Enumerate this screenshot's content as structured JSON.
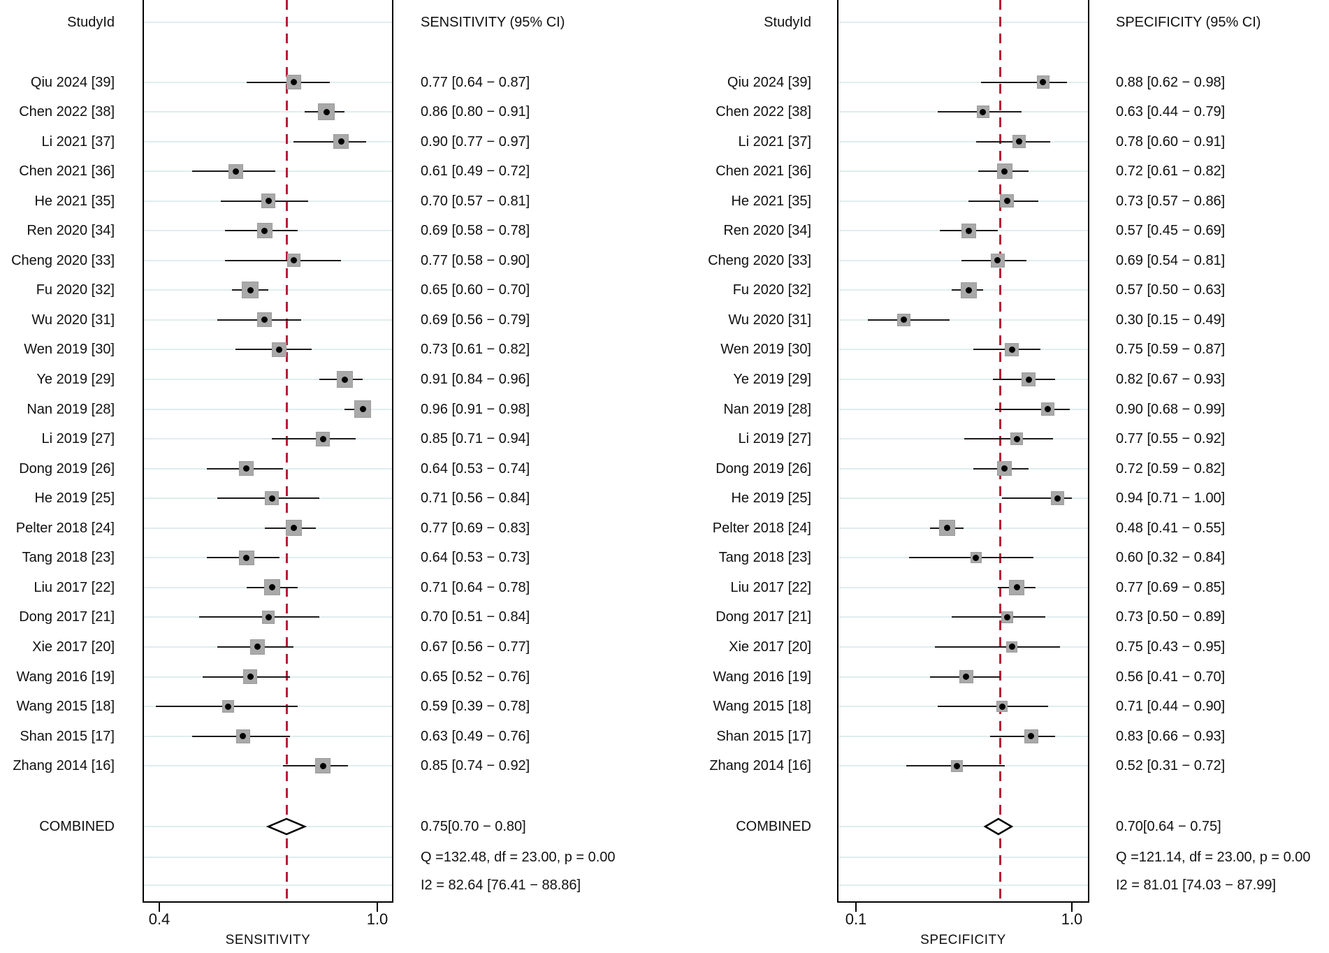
{
  "figure_title": "Paired forest plot of sensitivity and specificity (meta-analysis)",
  "headers": {
    "study_id": "StudyId",
    "sensitivity": "SENSITIVITY (95% CI)",
    "specificity": "SPECIFICITY (95% CI)"
  },
  "colors": {
    "ref_line": "#b81d35",
    "square_fill": "#a9a9a9",
    "square_edge": "#9b9b9b",
    "gridline": "#dfedee",
    "ci_line": "#1a1a1a",
    "text": "#111111",
    "diamond_stroke": "#000000"
  },
  "chart_data": [
    {
      "type": "forest",
      "title": "SENSITIVITY (95% CI)",
      "xlabel": "SENSITIVITY",
      "x_ticks": [
        0.4,
        1.0
      ],
      "x_tick_labels": [
        "0.4",
        "1.0"
      ],
      "xlim": [
        0.35,
        1.05
      ],
      "ref_line": 0.75,
      "grid": true,
      "studies": [
        {
          "label": "Qiu 2024 [39]",
          "est": 0.77,
          "lo": 0.64,
          "hi": 0.87,
          "text": "0.77 [0.64 − 0.87]"
        },
        {
          "label": "Chen 2022 [38]",
          "est": 0.86,
          "lo": 0.8,
          "hi": 0.91,
          "text": "0.86 [0.80 − 0.91]"
        },
        {
          "label": "Li 2021 [37]",
          "est": 0.9,
          "lo": 0.77,
          "hi": 0.97,
          "text": "0.90 [0.77 − 0.97]"
        },
        {
          "label": "Chen 2021 [36]",
          "est": 0.61,
          "lo": 0.49,
          "hi": 0.72,
          "text": "0.61 [0.49 − 0.72]"
        },
        {
          "label": "He 2021 [35]",
          "est": 0.7,
          "lo": 0.57,
          "hi": 0.81,
          "text": "0.70 [0.57 − 0.81]"
        },
        {
          "label": "Ren 2020 [34]",
          "est": 0.69,
          "lo": 0.58,
          "hi": 0.78,
          "text": "0.69 [0.58 − 0.78]"
        },
        {
          "label": "Cheng 2020 [33]",
          "est": 0.77,
          "lo": 0.58,
          "hi": 0.9,
          "text": "0.77 [0.58 − 0.90]"
        },
        {
          "label": "Fu 2020 [32]",
          "est": 0.65,
          "lo": 0.6,
          "hi": 0.7,
          "text": "0.65 [0.60 − 0.70]"
        },
        {
          "label": "Wu 2020 [31]",
          "est": 0.69,
          "lo": 0.56,
          "hi": 0.79,
          "text": "0.69 [0.56 − 0.79]"
        },
        {
          "label": "Wen 2019 [30]",
          "est": 0.73,
          "lo": 0.61,
          "hi": 0.82,
          "text": "0.73 [0.61 − 0.82]"
        },
        {
          "label": "Ye 2019 [29]",
          "est": 0.91,
          "lo": 0.84,
          "hi": 0.96,
          "text": "0.91 [0.84 − 0.96]"
        },
        {
          "label": "Nan 2019 [28]",
          "est": 0.96,
          "lo": 0.91,
          "hi": 0.98,
          "text": "0.96 [0.91 − 0.98]"
        },
        {
          "label": "Li 2019 [27]",
          "est": 0.85,
          "lo": 0.71,
          "hi": 0.94,
          "text": "0.85 [0.71 − 0.94]"
        },
        {
          "label": "Dong 2019 [26]",
          "est": 0.64,
          "lo": 0.53,
          "hi": 0.74,
          "text": "0.64 [0.53 − 0.74]"
        },
        {
          "label": "He 2019 [25]",
          "est": 0.71,
          "lo": 0.56,
          "hi": 0.84,
          "text": "0.71 [0.56 − 0.84]"
        },
        {
          "label": "Pelter 2018 [24]",
          "est": 0.77,
          "lo": 0.69,
          "hi": 0.83,
          "text": "0.77 [0.69 − 0.83]"
        },
        {
          "label": "Tang 2018 [23]",
          "est": 0.64,
          "lo": 0.53,
          "hi": 0.73,
          "text": "0.64 [0.53 − 0.73]"
        },
        {
          "label": "Liu 2017 [22]",
          "est": 0.71,
          "lo": 0.64,
          "hi": 0.78,
          "text": "0.71 [0.64 − 0.78]"
        },
        {
          "label": "Dong 2017 [21]",
          "est": 0.7,
          "lo": 0.51,
          "hi": 0.84,
          "text": "0.70 [0.51 − 0.84]"
        },
        {
          "label": "Xie 2017 [20]",
          "est": 0.67,
          "lo": 0.56,
          "hi": 0.77,
          "text": "0.67 [0.56 − 0.77]"
        },
        {
          "label": "Wang 2016 [19]",
          "est": 0.65,
          "lo": 0.52,
          "hi": 0.76,
          "text": "0.65 [0.52 − 0.76]"
        },
        {
          "label": "Wang 2015 [18]",
          "est": 0.59,
          "lo": 0.39,
          "hi": 0.78,
          "text": "0.59 [0.39 − 0.78]"
        },
        {
          "label": "Shan 2015 [17]",
          "est": 0.63,
          "lo": 0.49,
          "hi": 0.76,
          "text": "0.63 [0.49 − 0.76]"
        },
        {
          "label": "Zhang 2014 [16]",
          "est": 0.85,
          "lo": 0.74,
          "hi": 0.92,
          "text": "0.85 [0.74 − 0.92]"
        }
      ],
      "combined": {
        "label": "COMBINED",
        "est": 0.75,
        "lo": 0.7,
        "hi": 0.8,
        "text": "0.75[0.70 − 0.80]"
      },
      "stats": [
        "Q =132.48, df = 23.00, p =  0.00",
        "I2 = 82.64 [76.41 − 88.86]"
      ]
    },
    {
      "type": "forest",
      "title": "SPECIFICITY (95% CI)",
      "xlabel": "SPECIFICITY",
      "x_ticks": [
        0.1,
        1.0
      ],
      "x_tick_labels": [
        "0.1",
        "1.0"
      ],
      "xlim": [
        0.02,
        1.07
      ],
      "ref_line": 0.7,
      "grid": true,
      "studies": [
        {
          "label": "Qiu 2024 [39]",
          "est": 0.88,
          "lo": 0.62,
          "hi": 0.98,
          "text": "0.88 [0.62 − 0.98]"
        },
        {
          "label": "Chen 2022 [38]",
          "est": 0.63,
          "lo": 0.44,
          "hi": 0.79,
          "text": "0.63 [0.44 − 0.79]"
        },
        {
          "label": "Li 2021 [37]",
          "est": 0.78,
          "lo": 0.6,
          "hi": 0.91,
          "text": "0.78 [0.60 − 0.91]"
        },
        {
          "label": "Chen 2021 [36]",
          "est": 0.72,
          "lo": 0.61,
          "hi": 0.82,
          "text": "0.72 [0.61 − 0.82]"
        },
        {
          "label": "He 2021 [35]",
          "est": 0.73,
          "lo": 0.57,
          "hi": 0.86,
          "text": "0.73 [0.57 − 0.86]"
        },
        {
          "label": "Ren 2020 [34]",
          "est": 0.57,
          "lo": 0.45,
          "hi": 0.69,
          "text": "0.57 [0.45 − 0.69]"
        },
        {
          "label": "Cheng 2020 [33]",
          "est": 0.69,
          "lo": 0.54,
          "hi": 0.81,
          "text": "0.69 [0.54 − 0.81]"
        },
        {
          "label": "Fu 2020 [32]",
          "est": 0.57,
          "lo": 0.5,
          "hi": 0.63,
          "text": "0.57 [0.50 − 0.63]"
        },
        {
          "label": "Wu 2020 [31]",
          "est": 0.3,
          "lo": 0.15,
          "hi": 0.49,
          "text": "0.30 [0.15 − 0.49]"
        },
        {
          "label": "Wen 2019 [30]",
          "est": 0.75,
          "lo": 0.59,
          "hi": 0.87,
          "text": "0.75 [0.59 − 0.87]"
        },
        {
          "label": "Ye 2019 [29]",
          "est": 0.82,
          "lo": 0.67,
          "hi": 0.93,
          "text": "0.82 [0.67 − 0.93]"
        },
        {
          "label": "Nan 2019 [28]",
          "est": 0.9,
          "lo": 0.68,
          "hi": 0.99,
          "text": "0.90 [0.68 − 0.99]"
        },
        {
          "label": "Li 2019 [27]",
          "est": 0.77,
          "lo": 0.55,
          "hi": 0.92,
          "text": "0.77 [0.55 − 0.92]"
        },
        {
          "label": "Dong 2019 [26]",
          "est": 0.72,
          "lo": 0.59,
          "hi": 0.82,
          "text": "0.72 [0.59 − 0.82]"
        },
        {
          "label": "He 2019 [25]",
          "est": 0.94,
          "lo": 0.71,
          "hi": 1.0,
          "text": "0.94 [0.71 − 1.00]"
        },
        {
          "label": "Pelter 2018 [24]",
          "est": 0.48,
          "lo": 0.41,
          "hi": 0.55,
          "text": "0.48 [0.41 − 0.55]"
        },
        {
          "label": "Tang 2018 [23]",
          "est": 0.6,
          "lo": 0.32,
          "hi": 0.84,
          "text": "0.60 [0.32 − 0.84]"
        },
        {
          "label": "Liu 2017 [22]",
          "est": 0.77,
          "lo": 0.69,
          "hi": 0.85,
          "text": "0.77 [0.69 − 0.85]"
        },
        {
          "label": "Dong 2017 [21]",
          "est": 0.73,
          "lo": 0.5,
          "hi": 0.89,
          "text": "0.73 [0.50 − 0.89]"
        },
        {
          "label": "Xie 2017 [20]",
          "est": 0.75,
          "lo": 0.43,
          "hi": 0.95,
          "text": "0.75 [0.43 − 0.95]"
        },
        {
          "label": "Wang 2016 [19]",
          "est": 0.56,
          "lo": 0.41,
          "hi": 0.7,
          "text": "0.56 [0.41 − 0.70]"
        },
        {
          "label": "Wang 2015 [18]",
          "est": 0.71,
          "lo": 0.44,
          "hi": 0.9,
          "text": "0.71 [0.44 − 0.90]"
        },
        {
          "label": "Shan 2015 [17]",
          "est": 0.83,
          "lo": 0.66,
          "hi": 0.93,
          "text": "0.83 [0.66 − 0.93]"
        },
        {
          "label": "Zhang 2014 [16]",
          "est": 0.52,
          "lo": 0.31,
          "hi": 0.72,
          "text": "0.52 [0.31 − 0.72]"
        }
      ],
      "combined": {
        "label": "COMBINED",
        "est": 0.7,
        "lo": 0.64,
        "hi": 0.75,
        "text": "0.70[0.64 − 0.75]"
      },
      "stats": [
        "Q =121.14, df = 23.00, p =  0.00",
        "I2 = 81.01 [74.03 − 87.99]"
      ]
    }
  ]
}
